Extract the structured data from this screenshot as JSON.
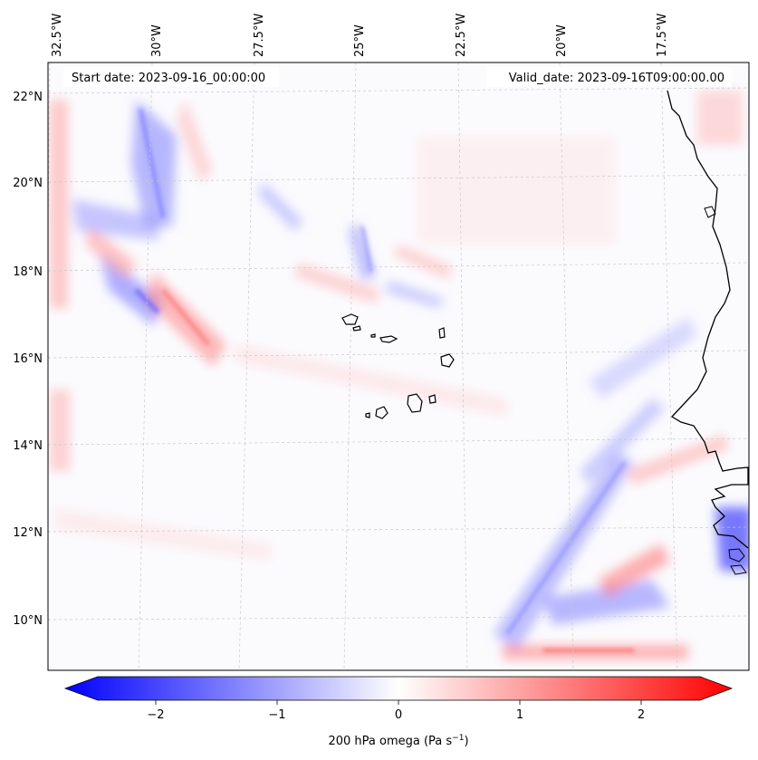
{
  "map": {
    "start_date_label": "Start date: 2023-09-16_00:00:00",
    "valid_date_label": "Valid_date: 2023-09-16T09:00:00.00",
    "lon_labels": [
      "32.5°W",
      "30°W",
      "27.5°W",
      "25°W",
      "22.5°W",
      "20°W",
      "17.5°W"
    ],
    "lat_labels": [
      "22°N",
      "20°N",
      "18°N",
      "16°N",
      "14°N",
      "12°N",
      "10°N"
    ],
    "colors": {
      "negative": "#0000ff",
      "zero": "#ffffff",
      "positive": "#ff0000",
      "coastline": "#000000",
      "gridline": "#c8c8c8"
    }
  },
  "colorbar": {
    "tick_labels": [
      "−2",
      "−1",
      "0",
      "1",
      "2"
    ],
    "label": "200 hPa omega (Pa s",
    "label_exponent": "−1",
    "label_close": ")",
    "range": [
      -2.6,
      2.6
    ],
    "extend": "both",
    "cmap": "bwr"
  }
}
